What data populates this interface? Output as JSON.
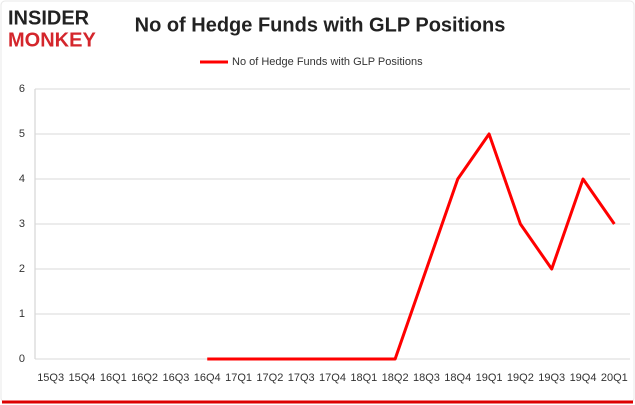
{
  "logo": {
    "top": "INSIDER",
    "bottom": "MONKEY"
  },
  "chart_data": {
    "type": "line",
    "title": "No of Hedge Funds with GLP Positions",
    "categories": [
      "15Q3",
      "15Q4",
      "16Q1",
      "16Q2",
      "16Q3",
      "16Q4",
      "17Q1",
      "17Q2",
      "17Q3",
      "17Q4",
      "18Q1",
      "18Q2",
      "18Q3",
      "18Q4",
      "19Q1",
      "19Q2",
      "19Q3",
      "19Q4",
      "20Q1"
    ],
    "series": [
      {
        "name": "No of Hedge Funds with GLP Positions",
        "color": "#ff0000",
        "values": [
          null,
          null,
          null,
          null,
          null,
          0,
          0,
          0,
          0,
          0,
          0,
          0,
          2,
          4,
          5,
          3,
          2,
          4,
          3
        ]
      }
    ],
    "ylim": [
      0,
      6
    ],
    "yticks": [
      0,
      1,
      2,
      3,
      4,
      5,
      6
    ],
    "grid": true,
    "legend": "top"
  }
}
